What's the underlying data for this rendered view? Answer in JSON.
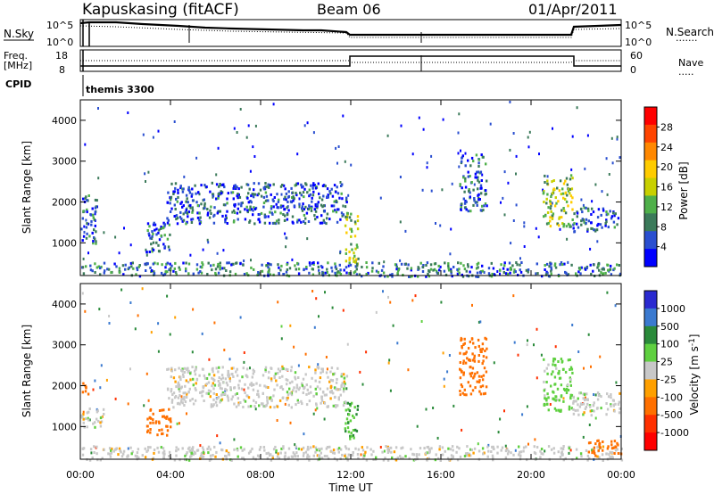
{
  "header": {
    "station": "Kapuskasing (fitACF)",
    "beam": "Beam 06",
    "date": "01/Apr/2011"
  },
  "noise_panel": {
    "left_label": "N.Sky",
    "left_ticks": [
      "10^5",
      "10^0"
    ],
    "right_ticks": [
      "10^5",
      "10^0"
    ],
    "right_label": "N.Search",
    "right_legend": "......."
  },
  "freq_panel": {
    "left_label_1": "Freq.",
    "left_label_2": "[MHz]",
    "left_ticks": [
      "18",
      "8"
    ],
    "right_ticks": [
      "60",
      "0"
    ],
    "right_label": "Nave",
    "right_legend": "....."
  },
  "cpid": {
    "label": "CPID",
    "value": "themis 3300"
  },
  "colors": {
    "frame": "#000000",
    "scale_power": [
      "#0000ff",
      "#2a4fd0",
      "#3b7a5a",
      "#4fb04a",
      "#c8d000",
      "#ffcc00",
      "#ff8800",
      "#ff4400",
      "#ff0000"
    ],
    "scale_velocity": [
      "#2a2ad0",
      "#3b7ad0",
      "#2a8a3a",
      "#5fd040",
      "#c8c8c8",
      "#ffa000",
      "#ff7000",
      "#ff3000",
      "#ff0000"
    ]
  },
  "chart_data": [
    {
      "type": "heatmap",
      "name": "power",
      "ylabel": "Slant Range [km]",
      "yticks": [
        "1000",
        "2000",
        "3000",
        "4000"
      ],
      "ylim": [
        200,
        4500
      ],
      "xlim": [
        0,
        24
      ],
      "colorbar_label": "Power [dB]",
      "colorbar_ticks": [
        "28",
        "24",
        "20",
        "16",
        "12",
        "8",
        "4"
      ],
      "colorbar_range": [
        0,
        32
      ],
      "features": [
        {
          "t0": 0.0,
          "t1": 0.7,
          "r0": 1000,
          "r1": 2200,
          "level": 6
        },
        {
          "t0": 2.9,
          "t1": 4.0,
          "r0": 800,
          "r1": 1600,
          "level": 7
        },
        {
          "t0": 3.8,
          "t1": 11.8,
          "r0": 1500,
          "r1": 2500,
          "level": 6
        },
        {
          "t0": 11.7,
          "t1": 12.3,
          "r0": 500,
          "r1": 1800,
          "level": 14
        },
        {
          "t0": 0.0,
          "t1": 24.0,
          "r0": 200,
          "r1": 550,
          "level": 8
        },
        {
          "t0": 16.8,
          "t1": 18.0,
          "r0": 1800,
          "r1": 3200,
          "level": 7
        },
        {
          "t0": 20.5,
          "t1": 21.8,
          "r0": 1400,
          "r1": 2700,
          "level": 14
        },
        {
          "t0": 21.8,
          "t1": 23.9,
          "r0": 1300,
          "r1": 1900,
          "level": 7
        }
      ]
    },
    {
      "type": "heatmap",
      "name": "velocity",
      "ylabel": "Slant Range [km]",
      "yticks": [
        "1000",
        "2000",
        "3000",
        "4000"
      ],
      "ylim": [
        200,
        4500
      ],
      "xlim": [
        0,
        24
      ],
      "colorbar_label": "Velocity [m s^-1]",
      "colorbar_ticks": [
        "1000",
        "500",
        "100",
        "25",
        "-25",
        "-100",
        "-500",
        "-1000"
      ],
      "xticks": [
        "00:00",
        "04:00",
        "08:00",
        "12:00",
        "16:00",
        "20:00",
        "00:00"
      ],
      "xlabel": "Time UT",
      "features": [
        {
          "t0": 0.0,
          "t1": 0.4,
          "r0": 1750,
          "r1": 2100,
          "vel": -300
        },
        {
          "t0": 0.0,
          "t1": 1.0,
          "r0": 1000,
          "r1": 1500,
          "vel": 0
        },
        {
          "t0": 2.9,
          "t1": 4.0,
          "r0": 800,
          "r1": 1500,
          "vel": -150
        },
        {
          "t0": 3.8,
          "t1": 11.8,
          "r0": 1500,
          "r1": 2500,
          "vel": 0
        },
        {
          "t0": 11.7,
          "t1": 12.3,
          "r0": 700,
          "r1": 1700,
          "vel": 100
        },
        {
          "t0": 0.0,
          "t1": 24.0,
          "r0": 200,
          "r1": 550,
          "vel": 0
        },
        {
          "t0": 16.8,
          "t1": 18.0,
          "r0": 1800,
          "r1": 3200,
          "vel": -300
        },
        {
          "t0": 20.5,
          "t1": 21.8,
          "r0": 1400,
          "r1": 2700,
          "vel": 50
        },
        {
          "t0": 21.8,
          "t1": 23.9,
          "r0": 1300,
          "r1": 1900,
          "vel": 0
        },
        {
          "t0": 22.5,
          "t1": 24.0,
          "r0": 300,
          "r1": 700,
          "vel": -200
        }
      ]
    }
  ]
}
